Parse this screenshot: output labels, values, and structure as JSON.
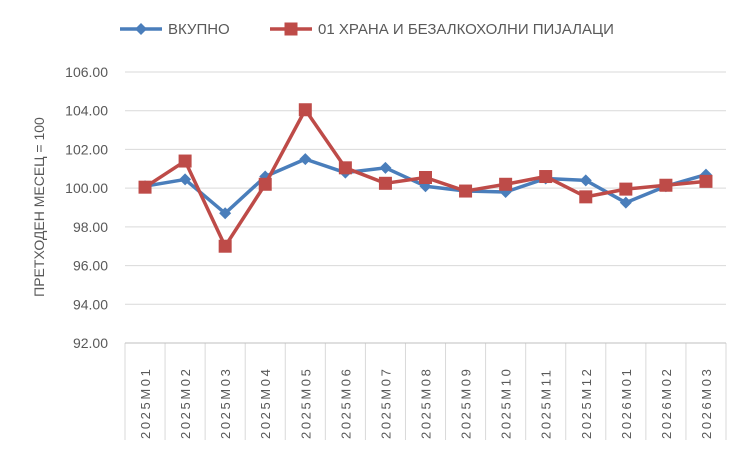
{
  "chart_data": {
    "type": "line",
    "title": "",
    "xlabel": "",
    "ylabel": "ПРЕТХОДЕН МЕСЕЦ = 100",
    "ylim": [
      92,
      106
    ],
    "yticks": [
      92,
      94,
      96,
      98,
      100,
      102,
      104,
      106
    ],
    "ytick_labels": [
      "92.00",
      "94.00",
      "96.00",
      "98.00",
      "100.00",
      "102.00",
      "104.00",
      "106.00"
    ],
    "grid": true,
    "legend": "top",
    "categories": [
      "2025M01",
      "2025M02",
      "2025M03",
      "2025M04",
      "2025M05",
      "2025M06",
      "2025M07",
      "2025M08",
      "2025M09",
      "2025M10",
      "2025M11",
      "2025M12",
      "2026M01",
      "2026M02",
      "2026M03"
    ],
    "series": [
      {
        "name": "ВКУПНО",
        "color": "#4a7ebb",
        "marker": "diamond",
        "values": [
          100.1,
          100.45,
          98.7,
          100.6,
          101.5,
          100.8,
          101.05,
          100.1,
          99.85,
          99.8,
          100.5,
          100.4,
          99.25,
          100.1,
          100.7
        ]
      },
      {
        "name": "01 ХРАНА И БЕЗАЛКОХОЛНИ ПИЈАЛАЦИ",
        "color": "#be4b48",
        "marker": "square",
        "values": [
          100.05,
          101.4,
          97.0,
          100.2,
          104.05,
          101.05,
          100.25,
          100.55,
          99.85,
          100.2,
          100.6,
          99.55,
          99.95,
          100.15,
          100.35
        ]
      }
    ]
  }
}
